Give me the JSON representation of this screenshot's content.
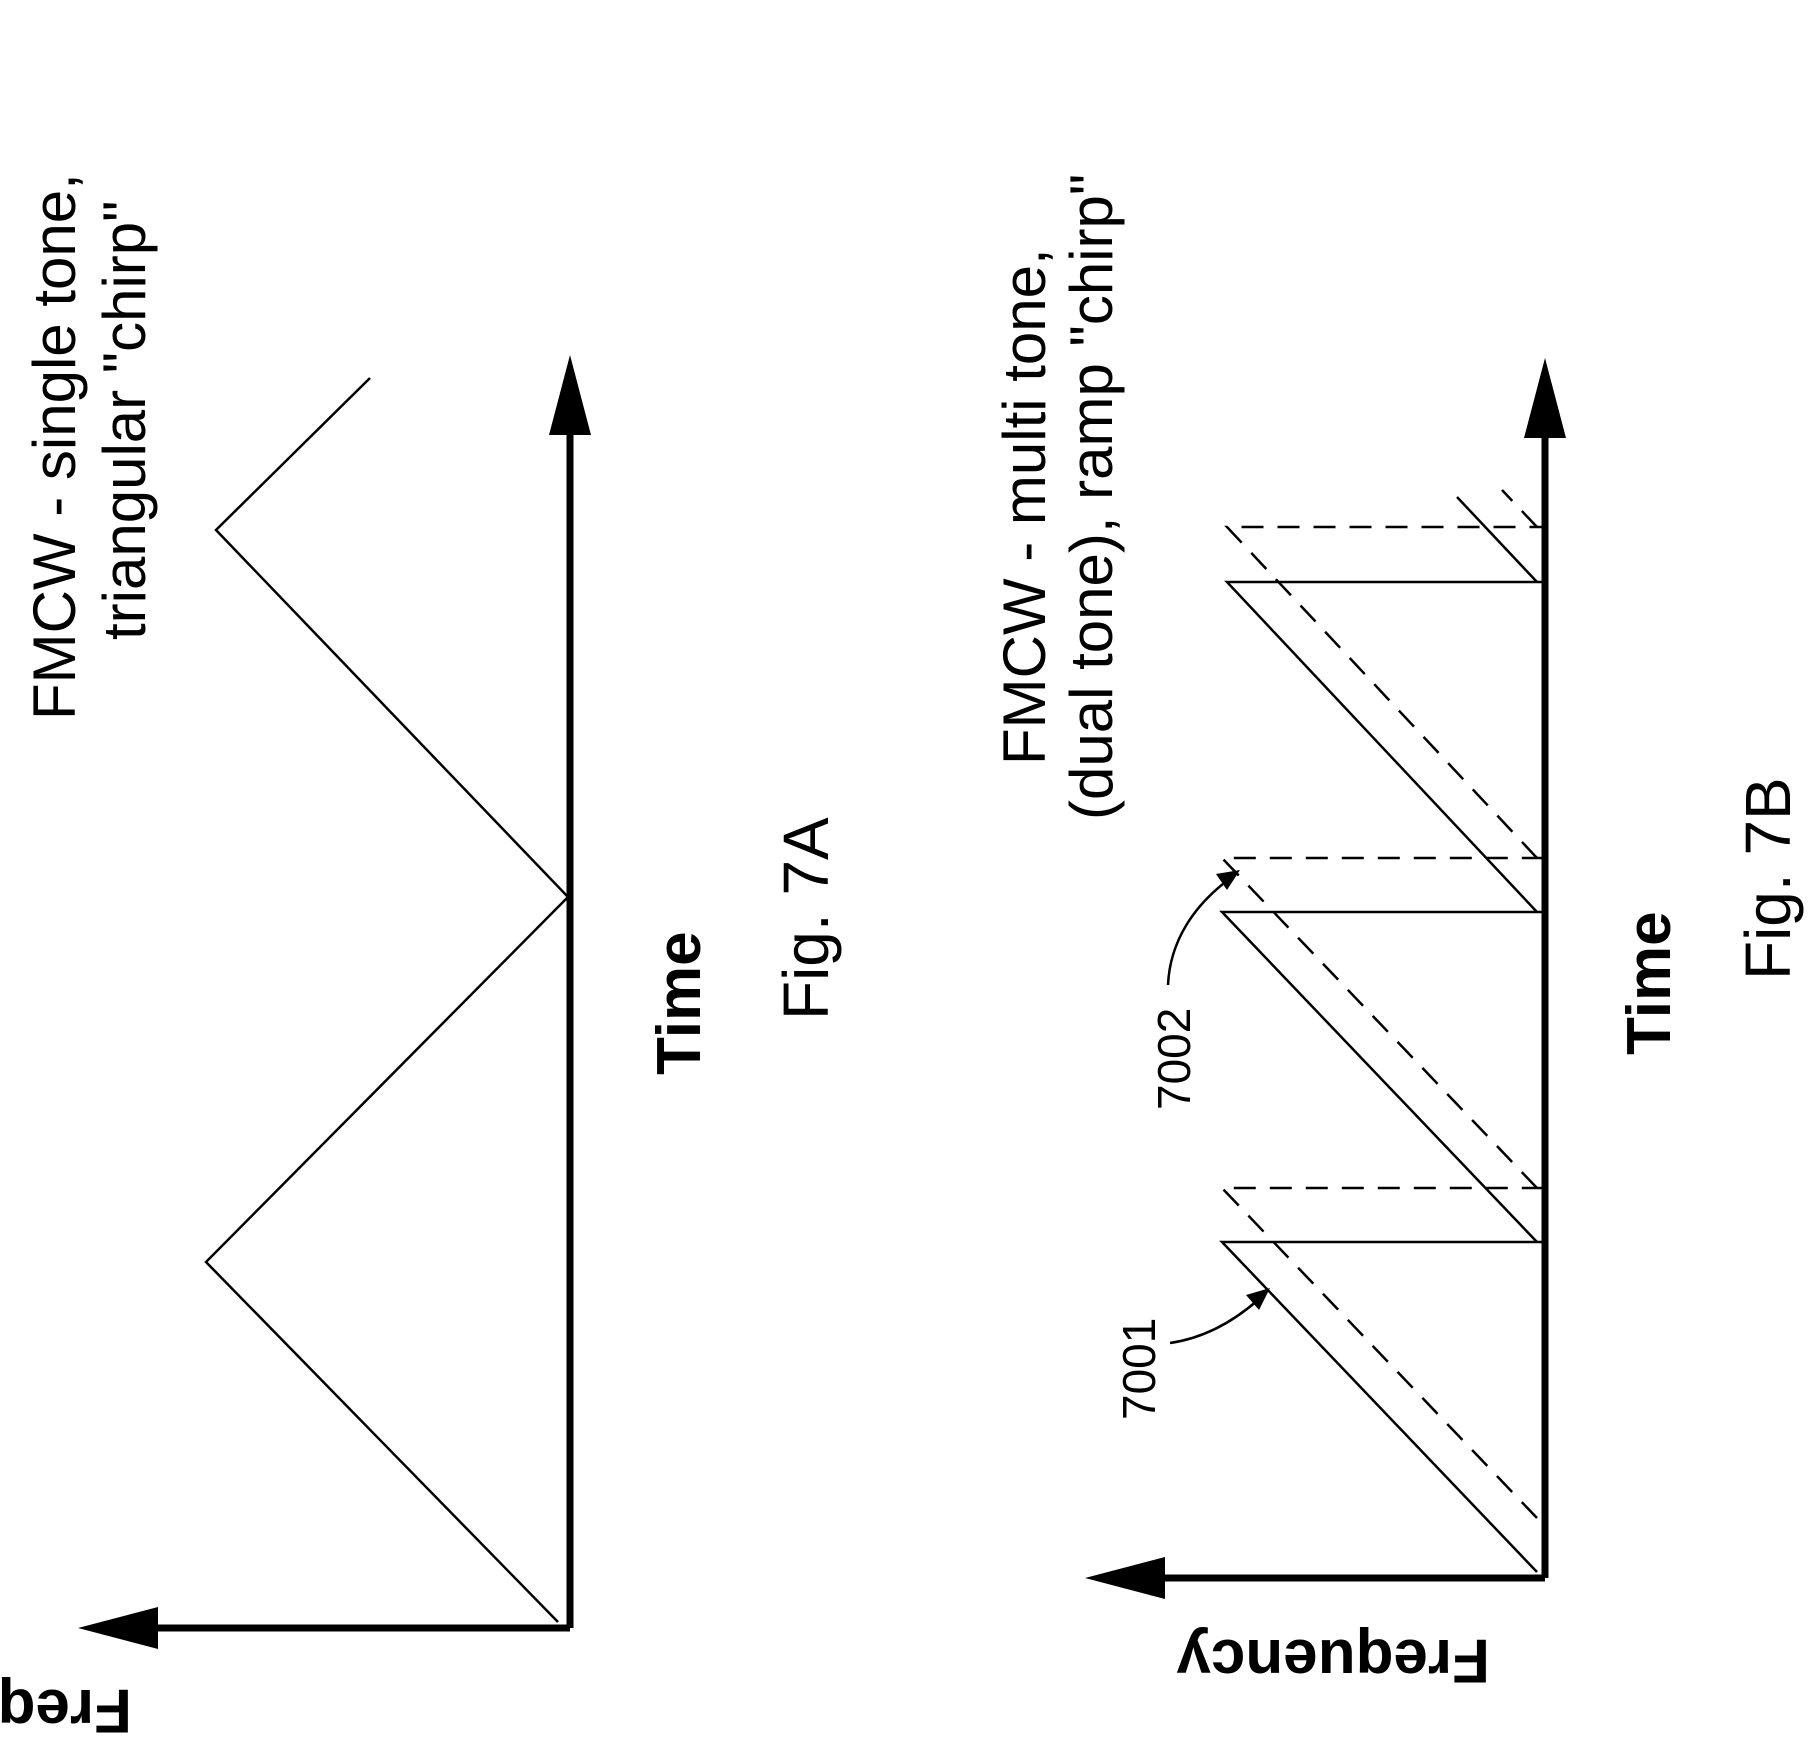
{
  "fig_7a": {
    "title_line1": "FMCW - single tone,",
    "title_line2": "triangular \"chirp\"",
    "time_axis_label": "Time",
    "frequency_axis_label": "Frequency",
    "figure_label": "Fig. 7A"
  },
  "fig_7b": {
    "title_line1": "FMCW - multi tone,",
    "title_line2": "(dual tone), ramp \"chirp\"",
    "time_axis_label": "Time",
    "frequency_axis_label": "Frequency",
    "figure_label": "Fig. 7B",
    "ref_solid": "7001",
    "ref_dashed": "7002"
  },
  "colors": {
    "ink": "#000000",
    "paper": "#ffffff"
  }
}
